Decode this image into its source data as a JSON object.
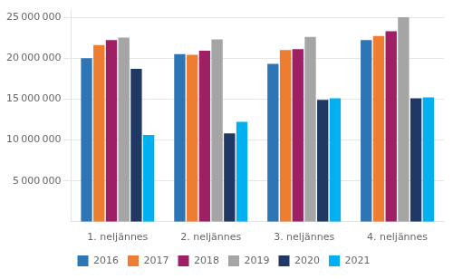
{
  "chart_data": {
    "type": "bar",
    "categories": [
      "1. neljännes",
      "2. neljännes",
      "3. neljännes",
      "4. neljännes"
    ],
    "series": [
      {
        "name": "2016",
        "color": "#2E75B6",
        "values": [
          20000000,
          20500000,
          19300000,
          22200000
        ]
      },
      {
        "name": "2017",
        "color": "#ED7D31",
        "values": [
          21600000,
          20400000,
          21000000,
          22700000
        ]
      },
      {
        "name": "2018",
        "color": "#9E1F63",
        "values": [
          22200000,
          20900000,
          21100000,
          23300000
        ]
      },
      {
        "name": "2019",
        "color": "#A5A5A5",
        "values": [
          22500000,
          22300000,
          22600000,
          25000000
        ]
      },
      {
        "name": "2020",
        "color": "#203864",
        "values": [
          18700000,
          10800000,
          14900000,
          15100000
        ]
      },
      {
        "name": "2021",
        "color": "#00B0F0",
        "values": [
          10600000,
          12200000,
          15100000,
          15200000
        ]
      }
    ],
    "ylim": [
      0,
      26000000
    ],
    "yticks": [
      {
        "value": 5000000,
        "label": "5 000 000"
      },
      {
        "value": 10000000,
        "label": "10 000 000"
      },
      {
        "value": 15000000,
        "label": "15 000 000"
      },
      {
        "value": 20000000,
        "label": "20 000 000"
      },
      {
        "value": 25000000,
        "label": "25 000 000"
      }
    ],
    "grid": true,
    "legend": "bottom"
  }
}
